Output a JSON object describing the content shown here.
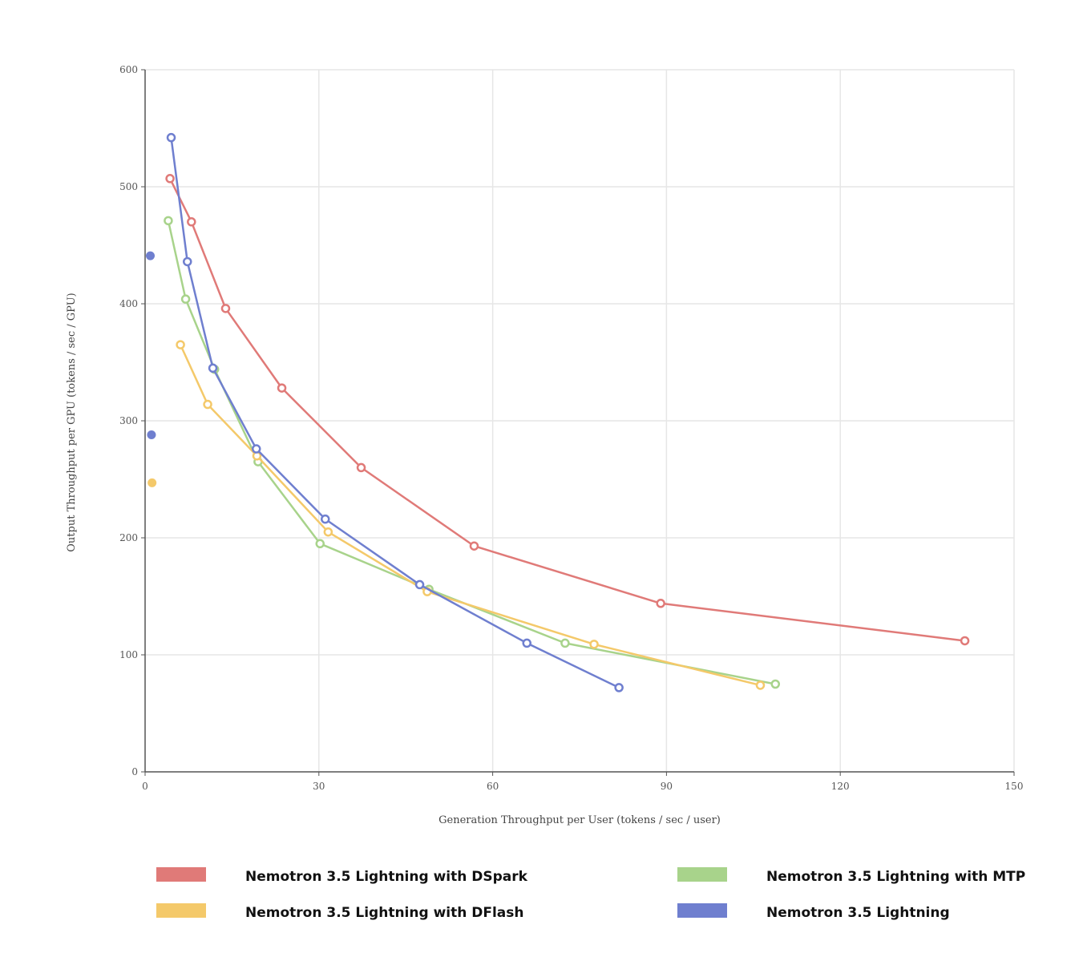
{
  "chart_data": {
    "type": "line",
    "title": "",
    "xlabel": "Generation Throughput per User (tokens / sec / user)",
    "ylabel": "Output Throughput per GPU (tokens / sec / GPU)",
    "xlim": [
      0,
      150
    ],
    "ylim": [
      0,
      600
    ],
    "xticks": [
      0,
      30,
      60,
      90,
      120,
      150
    ],
    "yticks": [
      0,
      100,
      200,
      300,
      400,
      500,
      600
    ],
    "grid": true,
    "legend_position": "bottom",
    "series": [
      {
        "name": "Nemotron 3.5 Lightning with DSpark",
        "color": "#e07a78",
        "points": [
          [
            4.3,
            507
          ],
          [
            8.0,
            470
          ],
          [
            13.9,
            396
          ],
          [
            23.6,
            328
          ],
          [
            37.3,
            260
          ],
          [
            56.8,
            193
          ],
          [
            89.0,
            144
          ],
          [
            141.5,
            112
          ]
        ]
      },
      {
        "name": "Nemotron 3.5 Lightning with MTP",
        "color": "#a8d38b",
        "points": [
          [
            4.0,
            471
          ],
          [
            7.0,
            404
          ],
          [
            12.0,
            344
          ],
          [
            19.5,
            265
          ],
          [
            30.2,
            195
          ],
          [
            49.0,
            156
          ],
          [
            72.5,
            110
          ],
          [
            108.8,
            75
          ]
        ]
      },
      {
        "name": "Nemotron 3.5 Lightning with DFlash",
        "color": "#f4c96a",
        "points": [
          [
            6.1,
            365
          ],
          [
            10.8,
            314
          ],
          [
            19.3,
            270
          ],
          [
            31.6,
            205
          ],
          [
            48.7,
            154
          ],
          [
            77.5,
            109
          ],
          [
            106.2,
            74
          ]
        ]
      },
      {
        "name": "Nemotron 3.5 Lightning",
        "color": "#6f7fcf",
        "points": [
          [
            4.5,
            542
          ],
          [
            7.3,
            436
          ],
          [
            11.7,
            345
          ],
          [
            19.2,
            276
          ],
          [
            31.1,
            216
          ],
          [
            47.4,
            160
          ],
          [
            65.9,
            110
          ],
          [
            81.8,
            72
          ]
        ]
      }
    ],
    "standalone_points": [
      {
        "x": 0.9,
        "y": 441,
        "color": "#6f7fcf"
      },
      {
        "x": 1.1,
        "y": 288,
        "color": "#6f7fcf"
      },
      {
        "x": 1.2,
        "y": 247,
        "color": "#f4c96a"
      }
    ]
  }
}
